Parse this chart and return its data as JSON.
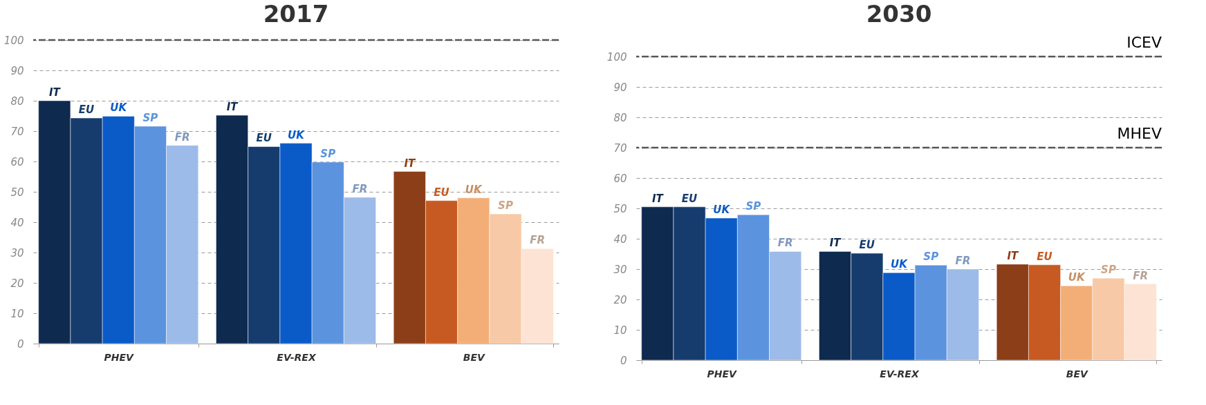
{
  "chart_data": [
    {
      "type": "bar",
      "title": "2017",
      "categories": [
        "PHEV",
        "EV-REX",
        "BEV"
      ],
      "series": [
        {
          "name": "IT",
          "colors": [
            "#0e2a4f",
            "#0e2a4f",
            "#8b3e17"
          ],
          "values": [
            80,
            75.2,
            56.7
          ]
        },
        {
          "name": "EU",
          "colors": [
            "#163c6e",
            "#163c6e",
            "#c75a22"
          ],
          "values": [
            74.3,
            64.9,
            47.1
          ]
        },
        {
          "name": "UK",
          "colors": [
            "#0a5bc8",
            "#0a5bc8",
            "#f3ae78"
          ],
          "values": [
            74.9,
            66,
            48
          ]
        },
        {
          "name": "SP",
          "colors": [
            "#5b93de",
            "#5b93de",
            "#f8c9a6"
          ],
          "values": [
            71.6,
            59.8,
            42.7
          ]
        },
        {
          "name": "FR",
          "colors": [
            "#9dbbe8",
            "#9dbbe8",
            "#fce3d3"
          ],
          "values": [
            65.3,
            48.2,
            31.3
          ]
        }
      ],
      "ylim": [
        0,
        100
      ],
      "yticks": [
        0,
        10,
        20,
        30,
        40,
        50,
        60,
        70,
        80,
        90,
        100
      ],
      "grid": "y",
      "ref_lines": [
        {
          "axis": "y",
          "value": 100,
          "label": null
        }
      ]
    },
    {
      "type": "bar",
      "title": "2030",
      "categories": [
        "PHEV",
        "EV-REX",
        "BEV"
      ],
      "series": [
        {
          "name": "IT",
          "colors": [
            "#0e2a4f",
            "#0e2a4f",
            "#8b3e17"
          ],
          "values": [
            50.5,
            35.8,
            31.6
          ]
        },
        {
          "name": "EU",
          "colors": [
            "#163c6e",
            "#163c6e",
            "#c75a22"
          ],
          "values": [
            50.5,
            35.2,
            31.4
          ]
        },
        {
          "name": "UK",
          "colors": [
            "#0a5bc8",
            "#0a5bc8",
            "#f3ae78"
          ],
          "values": [
            46.8,
            28.8,
            24.5
          ]
        },
        {
          "name": "SP",
          "colors": [
            "#5b93de",
            "#5b93de",
            "#f8c9a6"
          ],
          "values": [
            47.9,
            31.3,
            27
          ]
        },
        {
          "name": "FR",
          "colors": [
            "#9dbbe8",
            "#9dbbe8",
            "#fce3d3"
          ],
          "values": [
            35.8,
            30,
            25.1
          ]
        }
      ],
      "ylim": [
        0,
        100
      ],
      "yticks": [
        0,
        10,
        20,
        30,
        40,
        50,
        60,
        70,
        80,
        90,
        100
      ],
      "grid": "y",
      "ref_lines": [
        {
          "axis": "y",
          "value": 100,
          "label": "ICEV"
        },
        {
          "axis": "y",
          "value": 70,
          "label": "MHEV"
        }
      ]
    }
  ]
}
